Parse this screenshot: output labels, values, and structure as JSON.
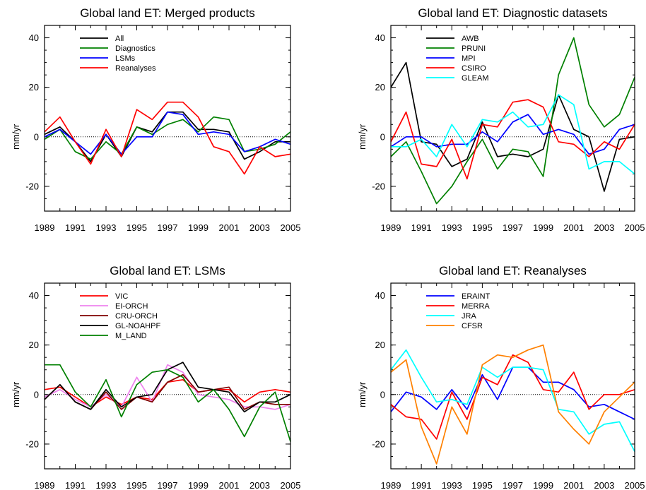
{
  "chart_data": [
    {
      "type": "line",
      "title": "Global land ET: Merged products",
      "xlabel": "",
      "ylabel": "mm/yr",
      "xlim": [
        1989,
        2005
      ],
      "ylim": [
        -30,
        45
      ],
      "xticks": [
        "1989",
        "1991",
        "1993",
        "1995",
        "1997",
        "1999",
        "2001",
        "2003",
        "2005"
      ],
      "yticks": [
        "40",
        "20",
        "0",
        "-20"
      ],
      "zero_line": "dotted",
      "legend": "top-left",
      "x": [
        1989,
        1990,
        1991,
        1992,
        1993,
        1994,
        1995,
        1996,
        1997,
        1998,
        1999,
        2000,
        2001,
        2002,
        2003,
        2004,
        2005
      ],
      "series": [
        {
          "name": "All",
          "color": "#000000",
          "values": [
            1,
            4,
            -2,
            -10,
            1,
            -8,
            4,
            2,
            10,
            10,
            3,
            3,
            2,
            -9,
            -6,
            -2,
            -2
          ]
        },
        {
          "name": "Diagnostics",
          "color": "#008000",
          "values": [
            -1,
            3,
            -6,
            -9,
            -2,
            -7,
            4,
            1,
            5,
            7,
            2,
            8,
            7,
            -6,
            -5,
            -3,
            2
          ]
        },
        {
          "name": "LSMs",
          "color": "#0000ff",
          "values": [
            0,
            3,
            -2,
            -7,
            1,
            -7,
            0,
            0,
            10,
            9,
            1,
            2,
            1,
            -6,
            -4,
            -1,
            -3
          ]
        },
        {
          "name": "Reanalyses",
          "color": "#ff0000",
          "values": [
            2,
            8,
            -2,
            -11,
            3,
            -8,
            11,
            7,
            14,
            14,
            8,
            -4,
            -6,
            -15,
            -4,
            -8,
            -7
          ]
        }
      ]
    },
    {
      "type": "line",
      "title": "Global land ET: Diagnostic datasets",
      "xlabel": "",
      "ylabel": "mm/yr",
      "xlim": [
        1989,
        2005
      ],
      "ylim": [
        -30,
        45
      ],
      "xticks": [
        "1989",
        "1991",
        "1993",
        "1995",
        "1997",
        "1999",
        "2001",
        "2003",
        "2005"
      ],
      "yticks": [
        "40",
        "20",
        "0",
        "-20"
      ],
      "zero_line": "dotted",
      "legend": "top-left",
      "x": [
        1989,
        1990,
        1991,
        1992,
        1993,
        1994,
        1995,
        1996,
        1997,
        1998,
        1999,
        2000,
        2001,
        2002,
        2003,
        2004,
        2005
      ],
      "series": [
        {
          "name": "AWB",
          "color": "#000000",
          "values": [
            20,
            30,
            -2,
            -3,
            -12,
            -9,
            6,
            -8,
            -7,
            -8,
            -5,
            17,
            3,
            0,
            -22,
            -1,
            0
          ]
        },
        {
          "name": "PRUNI",
          "color": "#008000",
          "values": [
            -8,
            -2,
            -14,
            -27,
            -20,
            -10,
            -1,
            -13,
            -5,
            -6,
            -16,
            25,
            40,
            13,
            4,
            9,
            24
          ]
        },
        {
          "name": "MPI",
          "color": "#0000ff",
          "values": [
            -4,
            0,
            0,
            -4,
            -3,
            -3,
            2,
            -2,
            6,
            9,
            1,
            3,
            1,
            -7,
            -5,
            3,
            5
          ]
        },
        {
          "name": "CSIRO",
          "color": "#ff0000",
          "values": [
            -2,
            10,
            -11,
            -12,
            -1,
            -17,
            5,
            4,
            14,
            15,
            12,
            -2,
            -3,
            -8,
            -2,
            -5,
            5
          ]
        },
        {
          "name": "GLEAM",
          "color": "#00ffff",
          "values": [
            -4,
            -4,
            -1,
            -8,
            5,
            -4,
            7,
            6,
            10,
            4,
            5,
            17,
            13,
            -13,
            -10,
            -10,
            -15
          ]
        }
      ]
    },
    {
      "type": "line",
      "title": "Global land ET: LSMs",
      "xlabel": "",
      "ylabel": "mm/yr",
      "xlim": [
        1989,
        2005
      ],
      "ylim": [
        -30,
        45
      ],
      "xticks": [
        "1989",
        "1991",
        "1993",
        "1995",
        "1997",
        "1999",
        "2001",
        "2003",
        "2005"
      ],
      "yticks": [
        "40",
        "20",
        "0",
        "-20"
      ],
      "zero_line": "dotted",
      "legend": "top-left",
      "x": [
        1989,
        1990,
        1991,
        1992,
        1993,
        1994,
        1995,
        1996,
        1997,
        1998,
        1999,
        2000,
        2001,
        2002,
        2003,
        2004,
        2005
      ],
      "series": [
        {
          "name": "VIC",
          "color": "#ff0000",
          "values": [
            2,
            3,
            -1,
            -5,
            -1,
            -4,
            -1,
            -2,
            5,
            6,
            1,
            2,
            2,
            -3,
            1,
            2,
            1
          ]
        },
        {
          "name": "EI-ORCH",
          "color": "#ee82ee",
          "values": [
            -1,
            2,
            -2,
            -5,
            0,
            -5,
            7,
            -3,
            12,
            9,
            0,
            -1,
            -2,
            -5,
            -5,
            -6,
            -4
          ]
        },
        {
          "name": "CRU-ORCH",
          "color": "#800000",
          "values": [
            -2,
            4,
            -3,
            -6,
            1,
            -6,
            -1,
            -3,
            5,
            8,
            1,
            2,
            3,
            -6,
            -3,
            -4,
            -4
          ]
        },
        {
          "name": "GL-NOAHPF",
          "color": "#000000",
          "values": [
            -2,
            4,
            -3,
            -6,
            2,
            -5,
            -1,
            0,
            10,
            13,
            3,
            2,
            1,
            -7,
            -3,
            -3,
            0
          ]
        },
        {
          "name": "M_LAND",
          "color": "#008000",
          "values": [
            12,
            12,
            1,
            -5,
            6,
            -9,
            4,
            9,
            10,
            7,
            -3,
            2,
            -6,
            -17,
            -5,
            1,
            -19
          ]
        }
      ]
    },
    {
      "type": "line",
      "title": "Global land ET: Reanalyses",
      "xlabel": "",
      "ylabel": "mm/yr",
      "xlim": [
        1989,
        2005
      ],
      "ylim": [
        -30,
        45
      ],
      "xticks": [
        "1989",
        "1991",
        "1993",
        "1995",
        "1997",
        "1999",
        "2001",
        "2003",
        "2005"
      ],
      "yticks": [
        "40",
        "20",
        "0",
        "-20"
      ],
      "zero_line": "dotted",
      "legend": "top-left",
      "x": [
        1989,
        1990,
        1991,
        1992,
        1993,
        1994,
        1995,
        1996,
        1997,
        1998,
        1999,
        2000,
        2001,
        2002,
        2003,
        2004,
        2005
      ],
      "series": [
        {
          "name": "ERAINT",
          "color": "#0000ff",
          "values": [
            -7,
            1,
            -1,
            -6,
            2,
            -6,
            8,
            -2,
            11,
            11,
            5,
            5,
            2,
            -5,
            -4,
            -7,
            -10
          ]
        },
        {
          "name": "MERRA",
          "color": "#ff0000",
          "values": [
            -4,
            -9,
            -10,
            -18,
            1,
            -10,
            7,
            4,
            16,
            13,
            2,
            1,
            9,
            -6,
            0,
            0,
            2
          ]
        },
        {
          "name": "JRA",
          "color": "#00ffff",
          "values": [
            10,
            18,
            7,
            -3,
            -2,
            -4,
            11,
            7,
            11,
            11,
            10,
            -6,
            -7,
            -16,
            -12,
            -11,
            -23
          ]
        },
        {
          "name": "CFSR",
          "color": "#ff8000",
          "values": [
            9,
            14,
            -13,
            -28,
            -5,
            -16,
            12,
            16,
            15,
            18,
            20,
            -7,
            -14,
            -20,
            -7,
            -1,
            5
          ]
        }
      ]
    }
  ]
}
